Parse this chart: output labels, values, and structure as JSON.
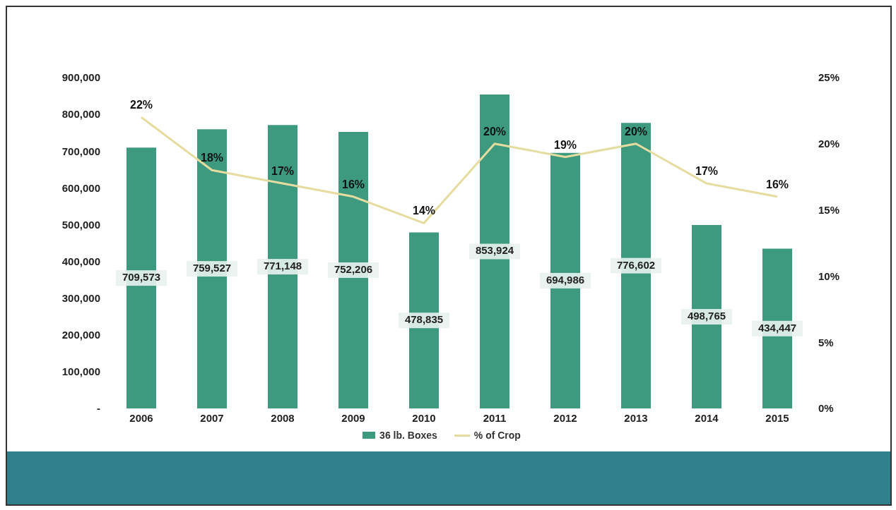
{
  "chart_data": {
    "type": "bar",
    "categories": [
      "2006",
      "2007",
      "2008",
      "2009",
      "2010",
      "2011",
      "2012",
      "2013",
      "2014",
      "2015"
    ],
    "series": [
      {
        "name": "36 lb. Boxes",
        "color": "#3d9a7f",
        "values": [
          709573,
          759527,
          771148,
          752206,
          478835,
          853924,
          694986,
          776602,
          498765,
          434447
        ],
        "value_labels": [
          "709,573",
          "759,527",
          "771,148",
          "752,206",
          "478,835",
          "853,924",
          "694,986",
          "776,602",
          "498,765",
          "434,447"
        ]
      },
      {
        "name": "% of Crop",
        "type": "line",
        "axis": "y2",
        "color": "#e6dca0",
        "values": [
          22,
          18,
          17,
          16,
          14,
          20,
          19,
          20,
          17,
          16
        ],
        "value_labels": [
          "22%",
          "18%",
          "17%",
          "16%",
          "14%",
          "20%",
          "19%",
          "20%",
          "17%",
          "16%"
        ]
      }
    ],
    "ylim": [
      0,
      900000
    ],
    "yticks": [
      {
        "value": 0,
        "label": "-"
      },
      {
        "value": 100000,
        "label": "100,000"
      },
      {
        "value": 200000,
        "label": "200,000"
      },
      {
        "value": 300000,
        "label": "300,000"
      },
      {
        "value": 400000,
        "label": "400,000"
      },
      {
        "value": 500000,
        "label": "500,000"
      },
      {
        "value": 600000,
        "label": "600,000"
      },
      {
        "value": 700000,
        "label": "700,000"
      },
      {
        "value": 800000,
        "label": "800,000"
      },
      {
        "value": 900000,
        "label": "900,000"
      }
    ],
    "y2lim": [
      0,
      25
    ],
    "y2ticks": [
      {
        "value": 0,
        "label": "0%"
      },
      {
        "value": 5,
        "label": "5%"
      },
      {
        "value": 10,
        "label": "10%"
      },
      {
        "value": 15,
        "label": "15%"
      },
      {
        "value": 20,
        "label": "20%"
      },
      {
        "value": 25,
        "label": "25%"
      }
    ],
    "grid": false,
    "legend": "bottom",
    "marker": "none"
  }
}
